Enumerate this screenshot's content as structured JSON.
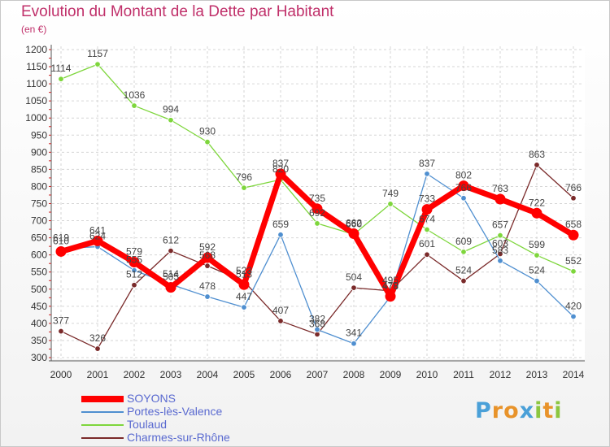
{
  "chart_data": {
    "type": "line",
    "title": "Evolution du Montant de la Dette par Habitant",
    "subtitle": "(en €)",
    "xlabel": "",
    "ylabel": "",
    "x": [
      "2000",
      "2001",
      "2002",
      "2003",
      "2004",
      "2005",
      "2006",
      "2007",
      "2008",
      "2009",
      "2010",
      "2011",
      "2012",
      "2013",
      "2014"
    ],
    "ylim": [
      300,
      1200
    ],
    "yticks": [
      300,
      350,
      400,
      450,
      500,
      550,
      600,
      650,
      700,
      750,
      800,
      850,
      900,
      950,
      1000,
      1050,
      1100,
      1150,
      1200
    ],
    "grid": true,
    "legend_position": "bottom-left",
    "series": [
      {
        "name": "SOYONS",
        "color": "#ff0000",
        "values": [
          610,
          641,
          579,
          505,
          592,
          513,
          837,
          735,
          662,
          479,
          733,
          802,
          763,
          722,
          658
        ]
      },
      {
        "name": "Portes-lès-Valence",
        "color": "#4f8fd0",
        "values": [
          619,
          624,
          555,
          514,
          478,
          447,
          659,
          382,
          341,
          478,
          837,
          766,
          583,
          524,
          420
        ]
      },
      {
        "name": "Toulaud",
        "color": "#7ed63c",
        "values": [
          1114,
          1157,
          1036,
          994,
          930,
          796,
          820,
          692,
          660,
          749,
          674,
          609,
          657,
          599,
          552
        ]
      },
      {
        "name": "Charmes-sur-Rhône",
        "color": "#7a2a2a",
        "values": [
          377,
          326,
          512,
          612,
          568,
          523,
          407,
          368,
          504,
          495,
          601,
          524,
          603,
          863,
          766
        ]
      }
    ]
  },
  "logo": {
    "letters": [
      "P",
      "r",
      "o",
      "x",
      "i",
      "t",
      "i"
    ],
    "colors": [
      "#4aa0d8",
      "#e8932a",
      "#e8932a",
      "#4aa0d8",
      "#8cc63f",
      "#e8932a",
      "#8cc63f"
    ]
  }
}
